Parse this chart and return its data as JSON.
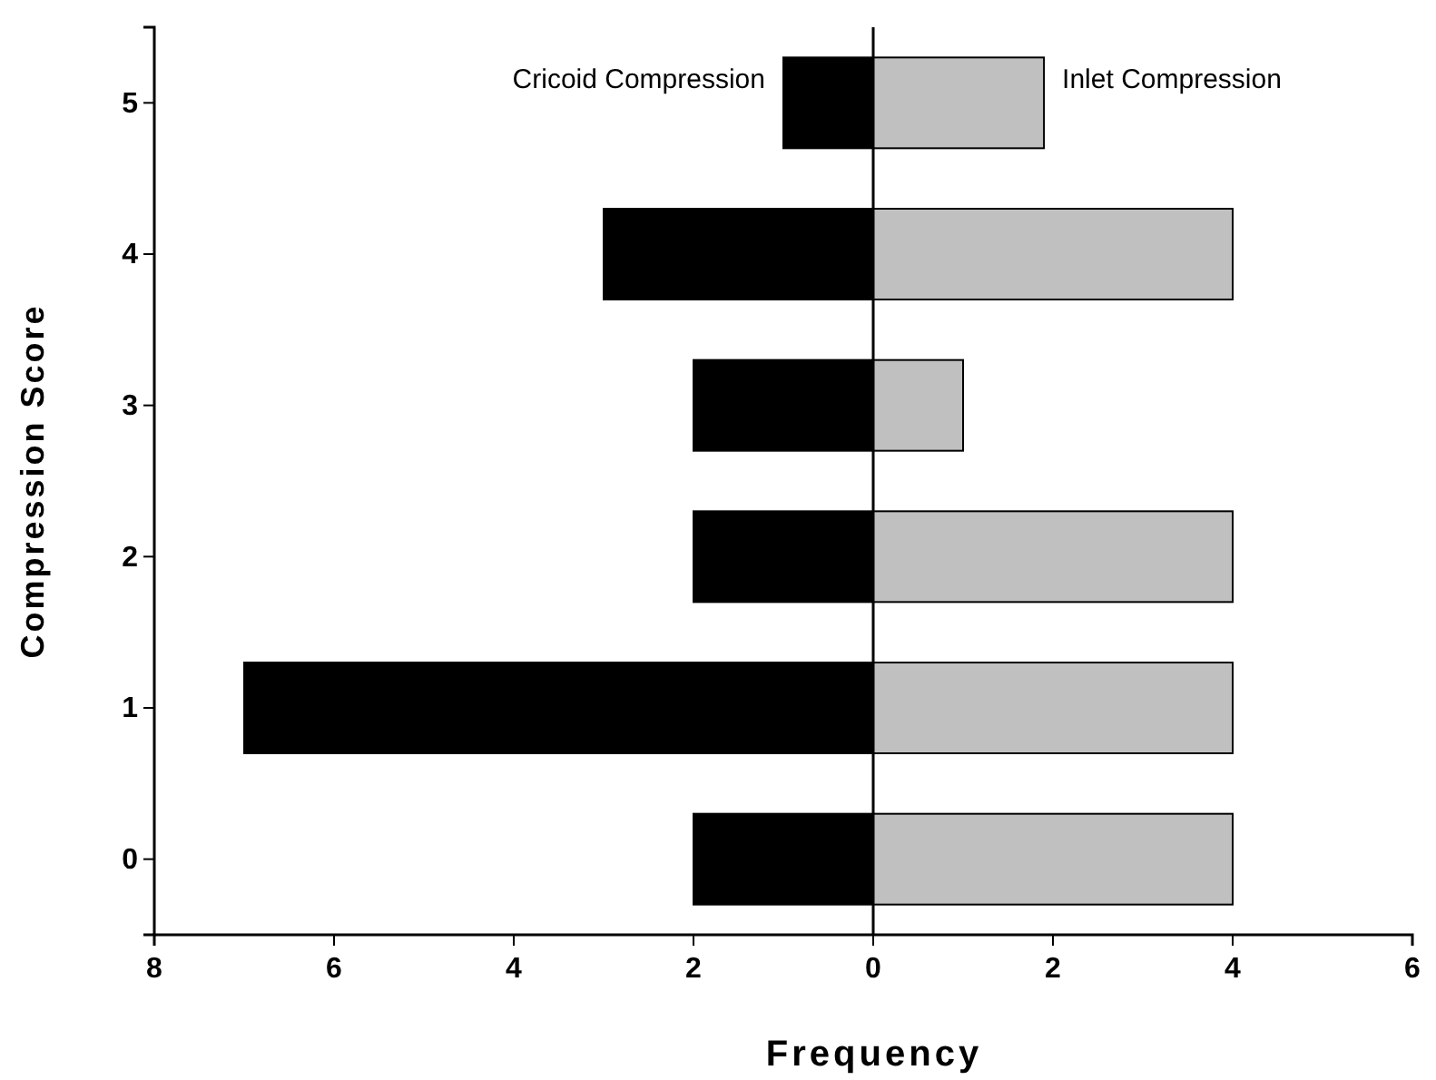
{
  "chart_data": {
    "type": "bar",
    "orientation": "horizontal",
    "xlabel": "Frequency",
    "ylabel": "Compression Score",
    "stacked": true,
    "categories": [
      "5",
      "4",
      "3",
      "2",
      "1",
      "0"
    ],
    "series": [
      {
        "name": "Cricoid Compression",
        "color": "#000000",
        "values": [
          -1,
          -3,
          -2,
          -2,
          -7,
          -2
        ]
      },
      {
        "name": "Inlet Compression",
        "color": "#c0c0c0",
        "values": [
          1.9,
          4,
          1,
          4,
          4,
          4
        ]
      }
    ],
    "xlim": [
      -8,
      6
    ],
    "xticks": [
      {
        "value": -8,
        "label": "8"
      },
      {
        "value": -6,
        "label": "6"
      },
      {
        "value": -4,
        "label": "4"
      },
      {
        "value": -2,
        "label": "2"
      },
      0,
      2,
      4,
      6
    ],
    "ref_lines": [
      {
        "axis": "x",
        "value": 0,
        "color": "#000000"
      }
    ],
    "grid": false,
    "legend": false
  }
}
